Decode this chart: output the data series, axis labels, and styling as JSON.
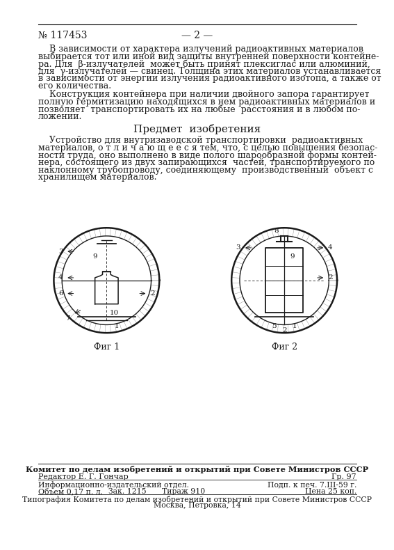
{
  "patent_number": "№ 117453",
  "page_number": "— 2 —",
  "background_color": "#ffffff",
  "text_color": "#1a1a1a",
  "fig1_label": "Фиг 1",
  "fig2_label": "Фиг 2",
  "footer_committee": "Комитет по делам изобретений и открытий при Совете Министров СССР",
  "footer_editor": "Редактор Е. Г. Гончар",
  "footer_gr": "Гр. 97",
  "footer_info_dept": "Информационно-издательский отдел.",
  "footer_volume": "Объем 0,17 п. л.",
  "footer_order": "Зак. 1215",
  "footer_circulation": "Тираж 910",
  "footer_sign": "Подп. к печ. 7.III-59 г.",
  "footer_price": "Цена 25 коп.",
  "footer_printing": "Типография Комитета по делам изобретений и открытий при Совете Министров СССР",
  "footer_address": "Москва, Петровка, 14",
  "p1_lines": [
    "    В зависимости от характера излучений радиоактивных материалов",
    "выбирается тот или иной вид защиты внутренней поверхности контейне-",
    "ра. Для  β-излучателей  может быть принят плексиглас или алюминий,",
    "для  γ-излучателей — свинец. Толщина этих материалов устанавливается",
    "в зависимости от энергии излучения радиоактивного изотопа, а также от",
    "его количества."
  ],
  "p2_lines": [
    "    Конструкция контейнера при наличии двойного запора гарантирует",
    "полную гермитизацию находящихся в нем радиоактивных материалов и",
    "позволяет  транспортировать их на любые  расстояния и в любом по-",
    "ложении."
  ],
  "section_title": "Предмет  изобретения",
  "p3_lines": [
    "    Устройство для внутризаводской транспортировки  радиоактивных",
    "материалов, о т л и ч а ю щ е е с я тем, что, с целью повышения безопас-",
    "ности труда, оно выполнено в виде полого шарообразной формы контей-",
    "нера, состоящего из двух запирающихся  частей, транспортируемого по",
    "наклонному трубопроводу, соединяющему  производственный  объект с",
    "хранилищем материалов."
  ]
}
